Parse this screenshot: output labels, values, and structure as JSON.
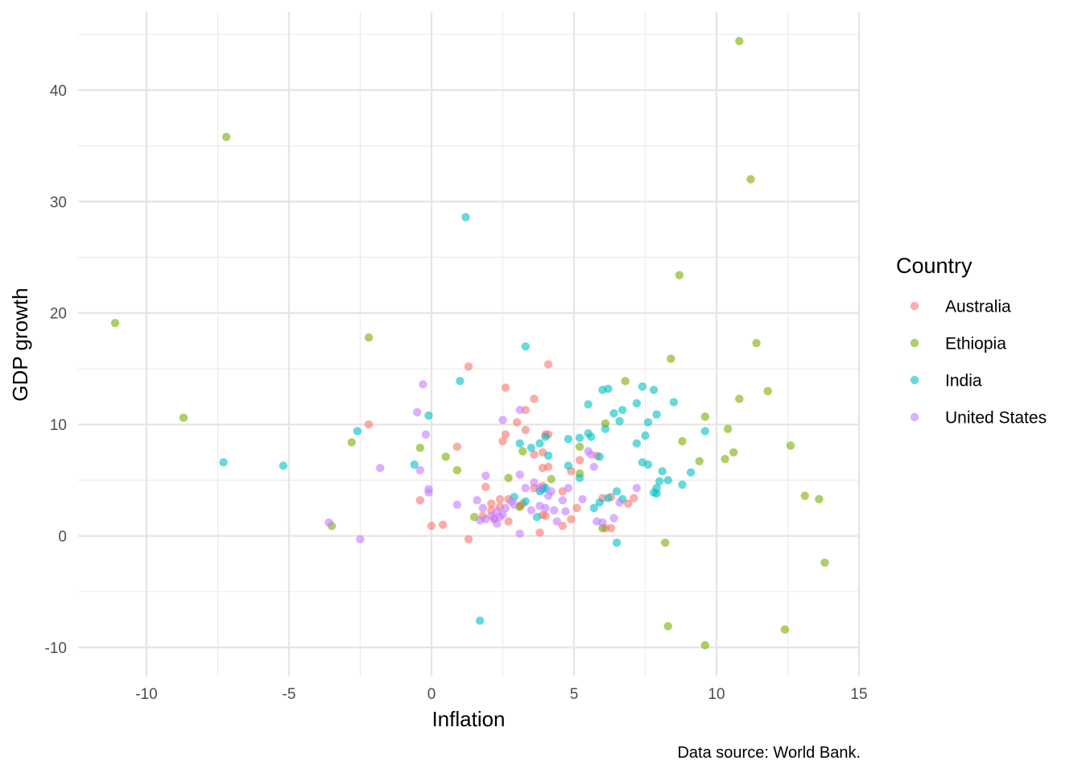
{
  "chart_data": {
    "type": "scatter",
    "title": "",
    "xlabel": "Inflation",
    "ylabel": "GDP growth",
    "xlim": [
      -12.4,
      15.0
    ],
    "ylim": [
      -12.6,
      47.0
    ],
    "x_ticks": [
      -10,
      -5,
      0,
      5,
      10,
      15
    ],
    "x_tick_labels": [
      "-10",
      "-5",
      "0",
      "5",
      "10",
      "15"
    ],
    "y_ticks": [
      -10,
      0,
      10,
      20,
      30,
      40
    ],
    "y_tick_labels": [
      "-10",
      "0",
      "10",
      "20",
      "30",
      "40"
    ],
    "grid": true,
    "legend_title": "Country",
    "legend_position": "right",
    "caption": "Data source: World Bank.",
    "series": [
      {
        "name": "Australia",
        "color": "#F8766D",
        "points": [
          [
            1.3,
            15.2
          ],
          [
            4.1,
            15.4
          ],
          [
            2.6,
            13.3
          ],
          [
            3.6,
            12.3
          ],
          [
            3.3,
            11.3
          ],
          [
            3.0,
            10.2
          ],
          [
            -2.2,
            10.0
          ],
          [
            2.6,
            9.1
          ],
          [
            2.5,
            8.5
          ],
          [
            3.3,
            9.5
          ],
          [
            4.0,
            9.1
          ],
          [
            4.1,
            9.1
          ],
          [
            0.9,
            8.0
          ],
          [
            3.9,
            7.5
          ],
          [
            3.6,
            7.3
          ],
          [
            5.2,
            6.8
          ],
          [
            4.1,
            6.2
          ],
          [
            3.9,
            6.1
          ],
          [
            5.8,
            7.2
          ],
          [
            1.9,
            4.4
          ],
          [
            3.6,
            4.3
          ],
          [
            3.9,
            4.5
          ],
          [
            -0.4,
            3.2
          ],
          [
            2.1,
            2.9
          ],
          [
            2.4,
            3.3
          ],
          [
            2.7,
            3.3
          ],
          [
            4.6,
            4.0
          ],
          [
            6.0,
            3.4
          ],
          [
            6.3,
            3.5
          ],
          [
            7.1,
            3.4
          ],
          [
            6.9,
            2.9
          ],
          [
            5.1,
            2.5
          ],
          [
            3.1,
            2.7
          ],
          [
            2.4,
            2.6
          ],
          [
            2.1,
            2.3
          ],
          [
            1.8,
            1.8
          ],
          [
            2.2,
            1.5
          ],
          [
            2.7,
            1.3
          ],
          [
            3.9,
            1.9
          ],
          [
            4.0,
            1.8
          ],
          [
            4.9,
            1.5
          ],
          [
            6.1,
            0.7
          ],
          [
            6.3,
            0.7
          ],
          [
            4.6,
            0.9
          ],
          [
            0.0,
            0.9
          ],
          [
            0.4,
            1.0
          ],
          [
            1.3,
            -0.3
          ],
          [
            3.8,
            0.3
          ],
          [
            4.9,
            5.8
          ],
          [
            3.2,
            2.9
          ]
        ]
      },
      {
        "name": "Ethiopia",
        "color": "#7CAE00",
        "points": [
          [
            10.8,
            44.4
          ],
          [
            -7.2,
            35.8
          ],
          [
            11.2,
            32.0
          ],
          [
            -11.1,
            19.1
          ],
          [
            8.7,
            23.4
          ],
          [
            -2.2,
            17.8
          ],
          [
            11.4,
            17.3
          ],
          [
            8.4,
            15.9
          ],
          [
            -8.7,
            10.6
          ],
          [
            6.8,
            13.9
          ],
          [
            10.8,
            12.3
          ],
          [
            11.8,
            13.0
          ],
          [
            9.6,
            10.7
          ],
          [
            6.1,
            10.1
          ],
          [
            10.4,
            9.6
          ],
          [
            8.8,
            8.5
          ],
          [
            -2.8,
            8.4
          ],
          [
            5.2,
            8.0
          ],
          [
            -0.4,
            7.9
          ],
          [
            3.2,
            7.6
          ],
          [
            12.6,
            8.1
          ],
          [
            10.6,
            7.5
          ],
          [
            10.3,
            6.9
          ],
          [
            9.4,
            6.7
          ],
          [
            0.5,
            7.1
          ],
          [
            0.9,
            5.9
          ],
          [
            2.7,
            5.2
          ],
          [
            13.1,
            3.6
          ],
          [
            13.6,
            3.3
          ],
          [
            3.1,
            2.6
          ],
          [
            1.5,
            1.7
          ],
          [
            -3.5,
            0.9
          ],
          [
            6.0,
            0.7
          ],
          [
            8.2,
            -0.6
          ],
          [
            13.8,
            -2.4
          ],
          [
            8.3,
            -8.1
          ],
          [
            12.4,
            -8.4
          ],
          [
            9.6,
            -9.8
          ],
          [
            5.2,
            5.6
          ],
          [
            4.2,
            5.1
          ]
        ]
      },
      {
        "name": "India",
        "color": "#00BFC4",
        "points": [
          [
            1.2,
            28.6
          ],
          [
            3.3,
            17.0
          ],
          [
            1.0,
            13.9
          ],
          [
            7.4,
            13.4
          ],
          [
            7.8,
            13.1
          ],
          [
            6.0,
            13.1
          ],
          [
            6.2,
            13.2
          ],
          [
            8.5,
            12.0
          ],
          [
            7.2,
            11.9
          ],
          [
            5.5,
            11.8
          ],
          [
            6.4,
            11.0
          ],
          [
            6.7,
            11.3
          ],
          [
            7.9,
            10.9
          ],
          [
            -0.1,
            10.8
          ],
          [
            7.6,
            10.2
          ],
          [
            6.6,
            10.3
          ],
          [
            6.1,
            9.6
          ],
          [
            -2.6,
            9.4
          ],
          [
            9.6,
            9.4
          ],
          [
            7.5,
            9.0
          ],
          [
            5.5,
            9.2
          ],
          [
            5.6,
            8.9
          ],
          [
            5.2,
            8.8
          ],
          [
            4.8,
            8.7
          ],
          [
            4.0,
            8.9
          ],
          [
            7.2,
            8.3
          ],
          [
            3.1,
            8.3
          ],
          [
            3.8,
            8.3
          ],
          [
            3.5,
            7.9
          ],
          [
            5.9,
            7.1
          ],
          [
            4.1,
            7.2
          ],
          [
            7.4,
            6.6
          ],
          [
            7.6,
            6.4
          ],
          [
            4.8,
            6.3
          ],
          [
            -7.3,
            6.6
          ],
          [
            -5.2,
            6.3
          ],
          [
            -0.6,
            6.4
          ],
          [
            8.1,
            5.8
          ],
          [
            9.1,
            5.7
          ],
          [
            8.3,
            5.0
          ],
          [
            8.0,
            4.9
          ],
          [
            8.8,
            4.6
          ],
          [
            5.2,
            5.2
          ],
          [
            3.9,
            4.2
          ],
          [
            3.8,
            4.0
          ],
          [
            7.9,
            4.3
          ],
          [
            7.8,
            3.9
          ],
          [
            7.9,
            3.8
          ],
          [
            6.5,
            4.0
          ],
          [
            6.7,
            3.3
          ],
          [
            5.9,
            3.0
          ],
          [
            5.7,
            2.5
          ],
          [
            3.3,
            3.1
          ],
          [
            2.9,
            3.5
          ],
          [
            3.7,
            1.7
          ],
          [
            6.5,
            -0.6
          ],
          [
            1.7,
            -7.6
          ],
          [
            4.0,
            4.3
          ],
          [
            6.2,
            3.4
          ]
        ]
      },
      {
        "name": "United States",
        "color": "#C77CFF",
        "points": [
          [
            -0.3,
            13.6
          ],
          [
            -0.5,
            11.1
          ],
          [
            3.1,
            11.3
          ],
          [
            2.5,
            10.4
          ],
          [
            -0.2,
            9.1
          ],
          [
            5.5,
            7.6
          ],
          [
            5.6,
            7.3
          ],
          [
            -1.8,
            6.1
          ],
          [
            -0.4,
            5.9
          ],
          [
            5.7,
            6.2
          ],
          [
            1.9,
            5.4
          ],
          [
            3.1,
            5.5
          ],
          [
            3.6,
            4.8
          ],
          [
            3.3,
            4.3
          ],
          [
            3.8,
            4.3
          ],
          [
            4.2,
            4.0
          ],
          [
            4.8,
            4.3
          ],
          [
            -0.1,
            4.2
          ],
          [
            -0.1,
            3.9
          ],
          [
            4.6,
            3.2
          ],
          [
            5.3,
            3.3
          ],
          [
            7.2,
            4.3
          ],
          [
            1.6,
            3.2
          ],
          [
            3.8,
            2.7
          ],
          [
            4.0,
            2.5
          ],
          [
            4.3,
            2.3
          ],
          [
            4.7,
            2.2
          ],
          [
            6.6,
            3.0
          ],
          [
            0.9,
            2.8
          ],
          [
            1.8,
            2.5
          ],
          [
            2.3,
            2.2
          ],
          [
            2.6,
            2.5
          ],
          [
            2.9,
            2.8
          ],
          [
            3.5,
            2.3
          ],
          [
            2.4,
            1.7
          ],
          [
            2.1,
            1.8
          ],
          [
            1.9,
            1.5
          ],
          [
            1.7,
            1.4
          ],
          [
            2.2,
            1.6
          ],
          [
            2.5,
            1.9
          ],
          [
            4.4,
            1.3
          ],
          [
            5.8,
            1.3
          ],
          [
            6.0,
            1.2
          ],
          [
            6.4,
            1.6
          ],
          [
            2.3,
            1.1
          ],
          [
            -3.6,
            1.2
          ],
          [
            3.1,
            0.2
          ],
          [
            -2.5,
            -0.3
          ],
          [
            2.8,
            3.1
          ],
          [
            4.1,
            3.6
          ]
        ]
      }
    ]
  }
}
